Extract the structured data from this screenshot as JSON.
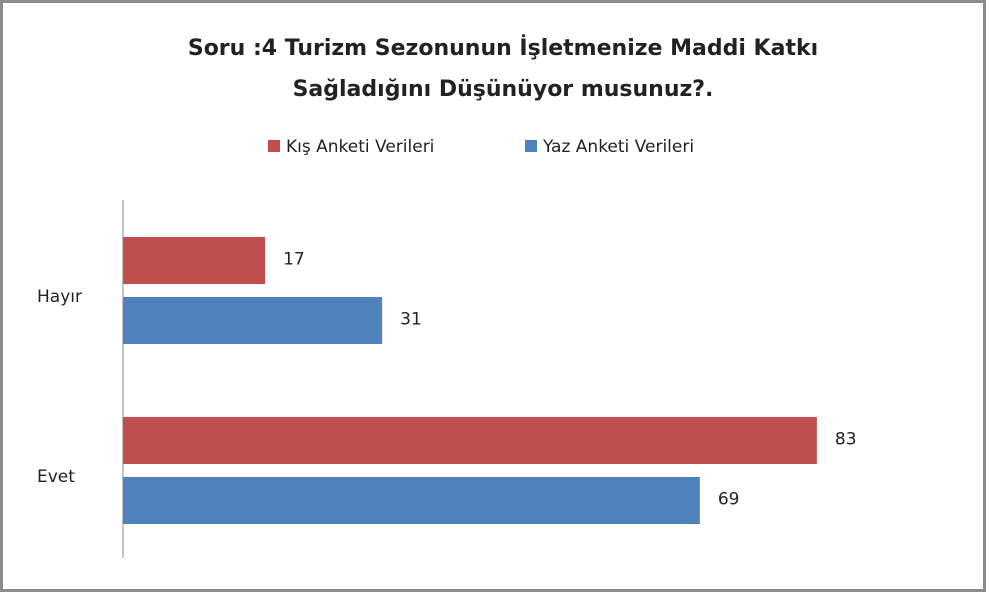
{
  "chart_data": {
    "type": "bar",
    "orientation": "horizontal",
    "title": "Soru :4 Turizm Sezonunun İşletmenize Maddi Katkı Sağladığını Düşünüyor musunuz?.",
    "categories": [
      "Hayır",
      "Evet"
    ],
    "series": [
      {
        "name": "Kış Anketi Verileri",
        "color": "#c0504d",
        "values": [
          17,
          83
        ]
      },
      {
        "name": "Yaz Anketi Verileri",
        "color": "#4f81bd",
        "values": [
          31,
          69
        ]
      }
    ],
    "legend": "top"
  }
}
